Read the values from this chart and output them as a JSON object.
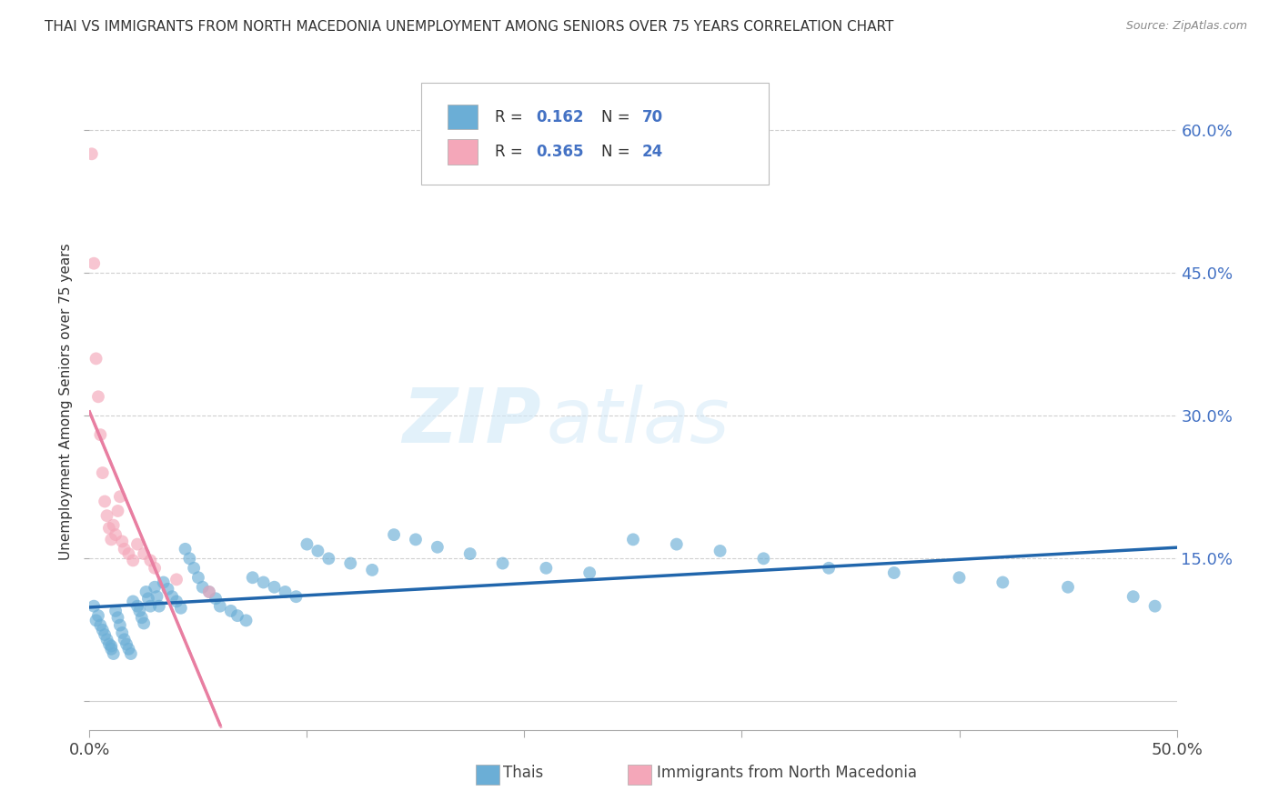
{
  "title": "THAI VS IMMIGRANTS FROM NORTH MACEDONIA UNEMPLOYMENT AMONG SENIORS OVER 75 YEARS CORRELATION CHART",
  "source": "Source: ZipAtlas.com",
  "ylabel": "Unemployment Among Seniors over 75 years",
  "xlim": [
    0.0,
    0.5
  ],
  "ylim": [
    -0.03,
    0.66
  ],
  "xticks": [
    0.0,
    0.1,
    0.2,
    0.3,
    0.4,
    0.5
  ],
  "yticks_right": [
    0.0,
    0.15,
    0.3,
    0.45,
    0.6
  ],
  "ytick_labels_right": [
    "",
    "15.0%",
    "30.0%",
    "45.0%",
    "60.0%"
  ],
  "color_blue": "#6baed6",
  "color_pink": "#f4a7b9",
  "color_blue_line": "#2166ac",
  "color_pink_line": "#e87ea1",
  "color_grid": "#d0d0d0",
  "watermark_zip": "ZIP",
  "watermark_atlas": "atlas",
  "legend_label1": "Thais",
  "legend_label2": "Immigrants from North Macedonia",
  "thai_x": [
    0.002,
    0.003,
    0.004,
    0.005,
    0.006,
    0.007,
    0.008,
    0.009,
    0.01,
    0.01,
    0.011,
    0.012,
    0.013,
    0.014,
    0.015,
    0.016,
    0.017,
    0.018,
    0.019,
    0.02,
    0.022,
    0.023,
    0.024,
    0.025,
    0.026,
    0.027,
    0.028,
    0.03,
    0.031,
    0.032,
    0.034,
    0.036,
    0.038,
    0.04,
    0.042,
    0.044,
    0.046,
    0.048,
    0.05,
    0.052,
    0.055,
    0.058,
    0.06,
    0.065,
    0.068,
    0.072,
    0.075,
    0.08,
    0.085,
    0.09,
    0.095,
    0.1,
    0.105,
    0.11,
    0.12,
    0.13,
    0.14,
    0.15,
    0.16,
    0.175,
    0.19,
    0.21,
    0.23,
    0.25,
    0.27,
    0.29,
    0.31,
    0.34,
    0.37,
    0.4,
    0.42,
    0.45,
    0.48,
    0.49
  ],
  "thai_y": [
    0.1,
    0.085,
    0.09,
    0.08,
    0.075,
    0.07,
    0.065,
    0.06,
    0.058,
    0.055,
    0.05,
    0.095,
    0.088,
    0.08,
    0.072,
    0.065,
    0.06,
    0.055,
    0.05,
    0.105,
    0.1,
    0.095,
    0.088,
    0.082,
    0.115,
    0.108,
    0.1,
    0.12,
    0.11,
    0.1,
    0.125,
    0.118,
    0.11,
    0.105,
    0.098,
    0.16,
    0.15,
    0.14,
    0.13,
    0.12,
    0.115,
    0.108,
    0.1,
    0.095,
    0.09,
    0.085,
    0.13,
    0.125,
    0.12,
    0.115,
    0.11,
    0.165,
    0.158,
    0.15,
    0.145,
    0.138,
    0.175,
    0.17,
    0.162,
    0.155,
    0.145,
    0.14,
    0.135,
    0.17,
    0.165,
    0.158,
    0.15,
    0.14,
    0.135,
    0.13,
    0.125,
    0.12,
    0.11,
    0.1
  ],
  "mac_x": [
    0.001,
    0.002,
    0.003,
    0.004,
    0.005,
    0.006,
    0.007,
    0.008,
    0.009,
    0.01,
    0.011,
    0.012,
    0.013,
    0.014,
    0.015,
    0.016,
    0.018,
    0.02,
    0.022,
    0.025,
    0.028,
    0.03,
    0.04,
    0.055
  ],
  "mac_y": [
    0.575,
    0.46,
    0.36,
    0.32,
    0.28,
    0.24,
    0.21,
    0.195,
    0.182,
    0.17,
    0.185,
    0.175,
    0.2,
    0.215,
    0.168,
    0.16,
    0.155,
    0.148,
    0.165,
    0.155,
    0.148,
    0.14,
    0.128,
    0.115
  ]
}
